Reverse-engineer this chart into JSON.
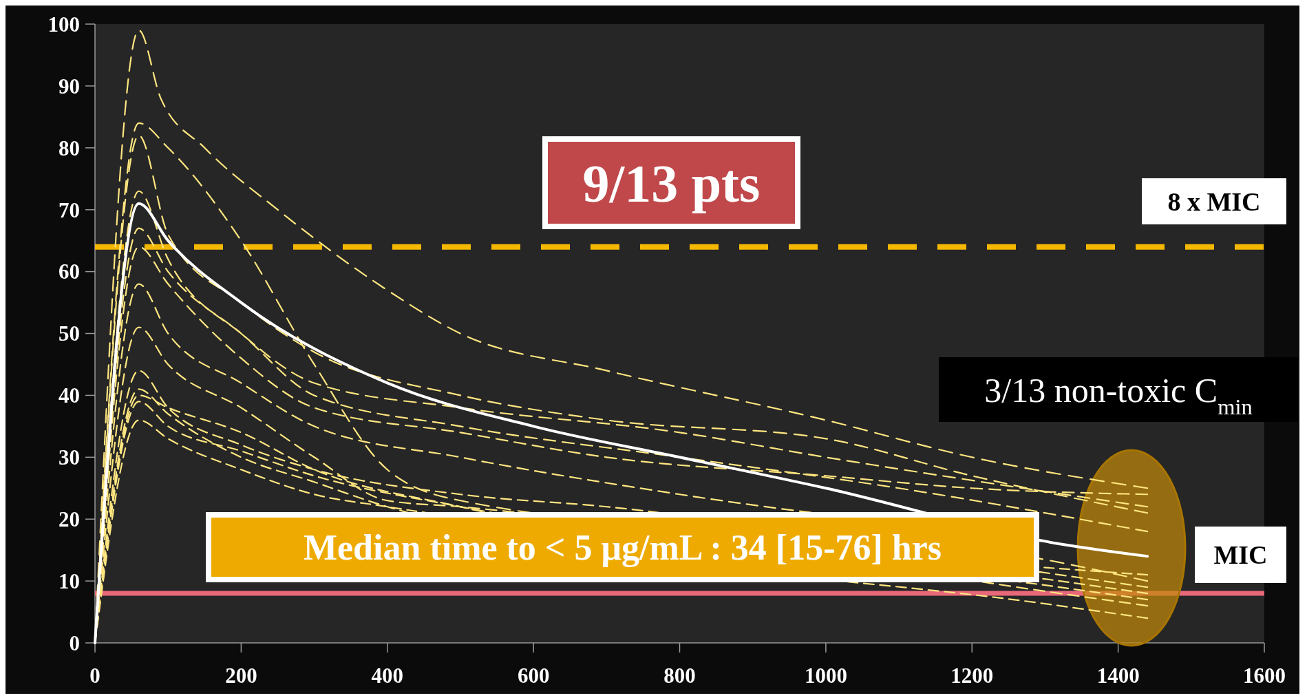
{
  "chart_data": {
    "type": "line",
    "xlim": [
      0,
      1600
    ],
    "ylim": [
      0,
      100
    ],
    "xticks": [
      0,
      200,
      400,
      600,
      800,
      1000,
      1200,
      1400,
      1600
    ],
    "yticks": [
      0,
      10,
      20,
      30,
      40,
      50,
      60,
      70,
      80,
      90,
      100
    ],
    "grid": false,
    "marker": "none",
    "line_style": "dashed",
    "series": [
      {
        "color": "#ffe680",
        "x": [
          0,
          60,
          90,
          150,
          250,
          400,
          500,
          700,
          1000,
          1200,
          1440
        ],
        "values": [
          0,
          99,
          88,
          80,
          70,
          57,
          50,
          44,
          36,
          30,
          25
        ]
      },
      {
        "color": "#ffe680",
        "x": [
          0,
          60,
          100,
          200,
          300,
          400,
          500,
          1320,
          1440
        ],
        "values": [
          0,
          84,
          80,
          65,
          45,
          28,
          23,
          13,
          10
        ]
      },
      {
        "color": "#ffe680",
        "x": [
          0,
          60,
          100,
          200,
          300,
          500,
          700,
          1000,
          1200,
          1440
        ],
        "values": [
          0,
          82,
          66,
          55,
          47,
          40,
          36,
          33,
          27,
          21
        ]
      },
      {
        "color": "#ffe680",
        "x": [
          0,
          60,
          100,
          200,
          300,
          500,
          800,
          1000,
          1440
        ],
        "values": [
          0,
          73,
          62,
          50,
          42,
          38,
          34,
          30,
          22
        ]
      },
      {
        "color": "#ffe680",
        "x": [
          0,
          60,
          100,
          200,
          300,
          500,
          800,
          1100,
          1440
        ],
        "values": [
          0,
          67,
          60,
          50,
          40,
          35,
          30,
          25,
          18
        ]
      },
      {
        "color": "#ffe680",
        "x": [
          0,
          60,
          100,
          200,
          300,
          500,
          800,
          1320,
          1440
        ],
        "values": [
          0,
          58,
          50,
          42,
          35,
          30,
          24,
          16,
          14
        ]
      },
      {
        "color": "#ffe680",
        "x": [
          0,
          60,
          100,
          200,
          300,
          400,
          500,
          1320,
          1440
        ],
        "values": [
          0,
          51,
          45,
          38,
          30,
          23,
          22,
          8,
          6
        ]
      },
      {
        "color": "#ffe680",
        "x": [
          0,
          60,
          100,
          200,
          300,
          500,
          700,
          1320,
          1440
        ],
        "values": [
          0,
          44,
          38,
          32,
          28,
          24,
          22,
          11,
          9
        ]
      },
      {
        "color": "#ffe680",
        "x": [
          0,
          60,
          100,
          200,
          300,
          400,
          1320,
          1440
        ],
        "values": [
          0,
          41,
          37,
          30,
          26,
          22,
          6,
          4
        ]
      },
      {
        "color": "#ffe680",
        "x": [
          0,
          60,
          100,
          200,
          300,
          500,
          1320,
          1440
        ],
        "values": [
          0,
          40,
          38,
          34,
          28,
          22,
          9,
          7
        ]
      },
      {
        "color": "#ffe680",
        "x": [
          0,
          60,
          100,
          200,
          300,
          500,
          1320,
          1440
        ],
        "values": [
          0,
          39,
          35,
          31,
          27,
          22,
          10,
          8
        ]
      },
      {
        "color": "#ffe680",
        "x": [
          0,
          60,
          100,
          200,
          300,
          400,
          1320,
          1440
        ],
        "values": [
          0,
          36,
          33,
          28,
          24,
          22,
          12,
          11
        ]
      },
      {
        "color": "#ffe680",
        "x": [
          0,
          60,
          100,
          200,
          300,
          500,
          700,
          1000,
          1200,
          1440
        ],
        "values": [
          0,
          64,
          58,
          46,
          38,
          34,
          30,
          27,
          25,
          24
        ]
      },
      {
        "color": "#ffffff",
        "line_style": "solid",
        "x": [
          0,
          60,
          100,
          200,
          400,
          600,
          800,
          1000,
          1320,
          1440
        ],
        "values": [
          0,
          71,
          65,
          55,
          42,
          35,
          30,
          25,
          16,
          14
        ]
      }
    ],
    "ref_lines": [
      {
        "axis": "y",
        "value": 64,
        "label": "8 x MIC",
        "color": "#f5b800",
        "line_style": "dashed"
      },
      {
        "axis": "y",
        "value": 8,
        "label": "MIC",
        "color": "#e8687a",
        "line_style": "solid"
      }
    ],
    "annotations": [
      "9/13 pts",
      "3/13 non-toxic C$_{min}$",
      "Median time to < 5 μg/mL : 34 [15-76] hrs"
    ]
  }
}
